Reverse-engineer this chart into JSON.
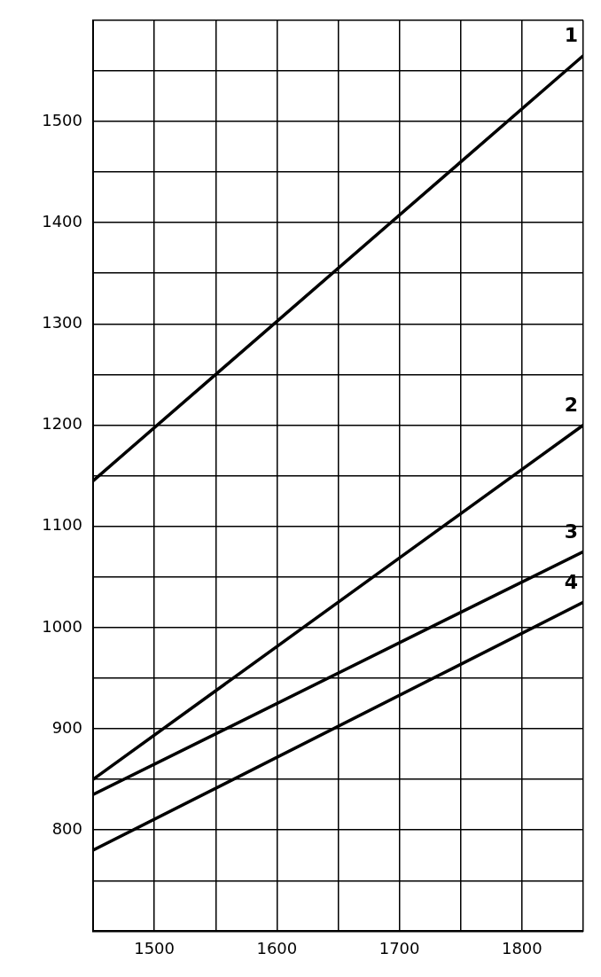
{
  "chart_data": {
    "type": "line",
    "x": [
      1450,
      1850
    ],
    "series": [
      {
        "name": "1",
        "color": "#000000",
        "values": [
          1145,
          1565
        ]
      },
      {
        "name": "2",
        "color": "#000000",
        "values": [
          850,
          1200
        ]
      },
      {
        "name": "3",
        "color": "#000000",
        "values": [
          835,
          1075
        ]
      },
      {
        "name": "4",
        "color": "#000000",
        "values": [
          780,
          1025
        ]
      }
    ],
    "xlim": [
      1450,
      1850
    ],
    "xticks": [
      {
        "value": 1450,
        "label": null
      },
      1500,
      {
        "value": 1550,
        "label": null
      },
      1600,
      {
        "value": 1650,
        "label": null
      },
      1700,
      {
        "value": 1750,
        "label": null
      },
      1800,
      {
        "value": 1850,
        "label": null
      }
    ],
    "ylim": [
      700,
      1600
    ],
    "yticks": [
      {
        "value": 700,
        "label": null
      },
      {
        "value": 750,
        "label": null
      },
      800,
      {
        "value": 850,
        "label": null
      },
      900,
      {
        "value": 950,
        "label": null
      },
      1000,
      {
        "value": 1050,
        "label": null
      },
      1100,
      {
        "value": 1150,
        "label": null
      },
      1200,
      {
        "value": 1250,
        "label": null
      },
      1300,
      {
        "value": 1350,
        "label": null
      },
      1400,
      {
        "value": 1450,
        "label": null
      },
      1500,
      {
        "value": 1550,
        "label": null
      },
      {
        "value": 1600,
        "label": null
      }
    ],
    "grid": true,
    "legend": false,
    "marker": "none",
    "line_style": "solid"
  }
}
